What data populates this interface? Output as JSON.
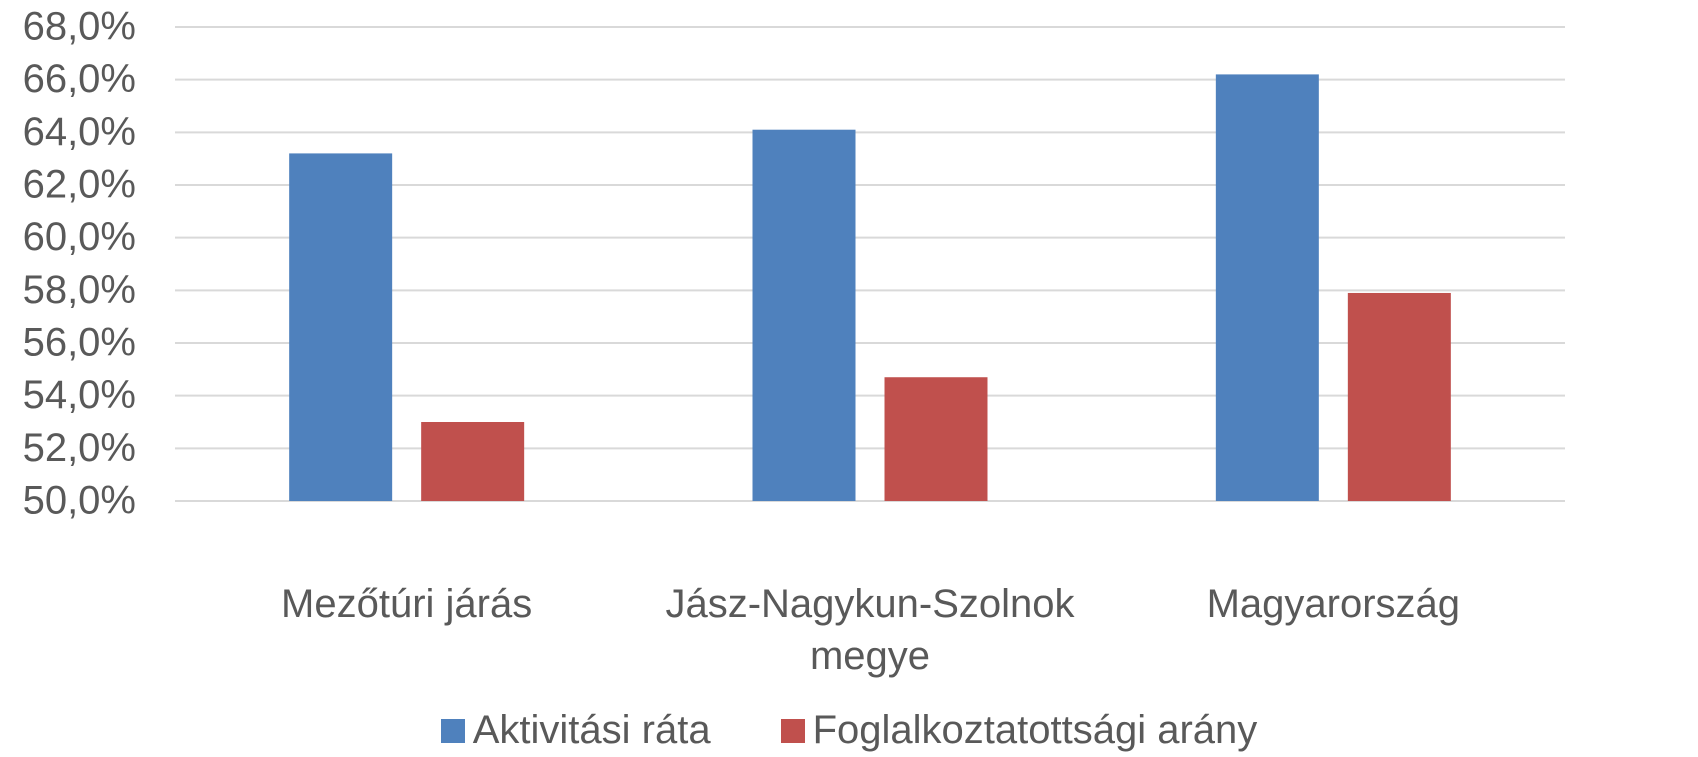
{
  "chart_data": {
    "type": "bar",
    "categories": [
      "Mezőtúri járás",
      "Jász-Nagykun-Szolnok megye",
      "Magyarország"
    ],
    "series": [
      {
        "name": "Aktivitási ráta",
        "color": "#4f81bd",
        "values": [
          63.2,
          64.1,
          66.2
        ]
      },
      {
        "name": "Foglalkoztatottsági arány",
        "color": "#c0504d",
        "values": [
          53.0,
          54.7,
          57.9
        ]
      }
    ],
    "ylim": [
      50,
      68
    ],
    "yticks": [
      {
        "value": 50,
        "label": "50,0%"
      },
      {
        "value": 52,
        "label": "52,0%"
      },
      {
        "value": 54,
        "label": "54,0%"
      },
      {
        "value": 56,
        "label": "56,0%"
      },
      {
        "value": 58,
        "label": "58,0%"
      },
      {
        "value": 60,
        "label": "60,0%"
      },
      {
        "value": 62,
        "label": "62,0%"
      },
      {
        "value": 64,
        "label": "64,0%"
      },
      {
        "value": 66,
        "label": "66,0%"
      },
      {
        "value": 68,
        "label": "68,0%"
      }
    ],
    "grid": true,
    "legend": "bottom"
  }
}
